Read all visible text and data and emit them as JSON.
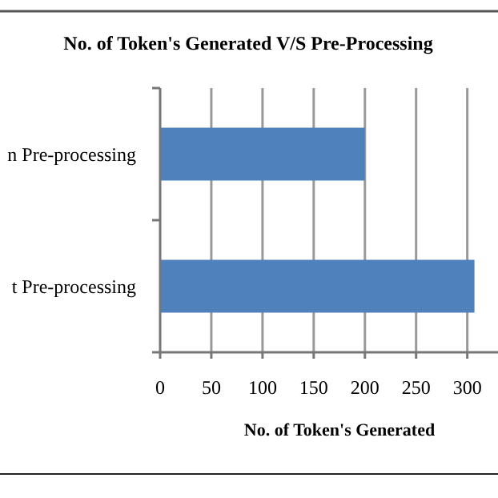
{
  "chart_data": {
    "type": "bar",
    "orientation": "horizontal",
    "title": "No. of Token's Generated V/S Pre-Processing",
    "xlabel": "No. of Token's Generated",
    "categories": [
      "n Pre-processing",
      "t Pre-processing"
    ],
    "values": [
      200,
      307
    ],
    "color": "#4f81bd",
    "xlim": [
      0,
      330
    ],
    "xticks": [
      0,
      50,
      100,
      150,
      200,
      250,
      300
    ],
    "grid": "x"
  }
}
